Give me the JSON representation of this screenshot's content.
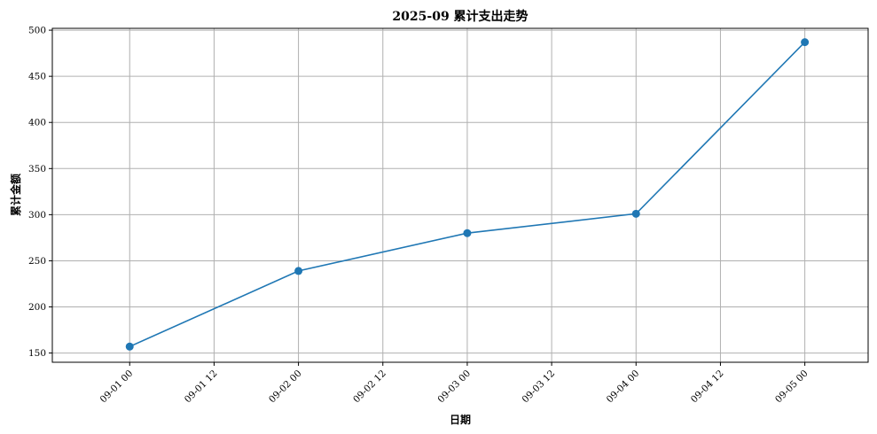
{
  "chart_data": {
    "type": "line",
    "title": "2025-09 累计支出走势",
    "xlabel": "日期",
    "ylabel": "累计金额",
    "x": [
      "09-01 00",
      "09-02 00",
      "09-03 00",
      "09-04 00",
      "09-05 00"
    ],
    "series": [
      {
        "values": [
          157,
          239,
          280,
          301,
          487
        ],
        "color": "#1f77b4"
      }
    ],
    "xlim": [
      "08-31 13",
      "09-05 09"
    ],
    "ylim": [
      140,
      502
    ],
    "x_ticks": [
      "09-01 00",
      "09-01 12",
      "09-02 00",
      "09-02 12",
      "09-03 00",
      "09-03 12",
      "09-04 00",
      "09-04 12",
      "09-05 00"
    ],
    "y_ticks": [
      150,
      200,
      250,
      300,
      350,
      400,
      450,
      500
    ],
    "grid": true,
    "marker": "circle",
    "x_tick_rotation": 45
  }
}
